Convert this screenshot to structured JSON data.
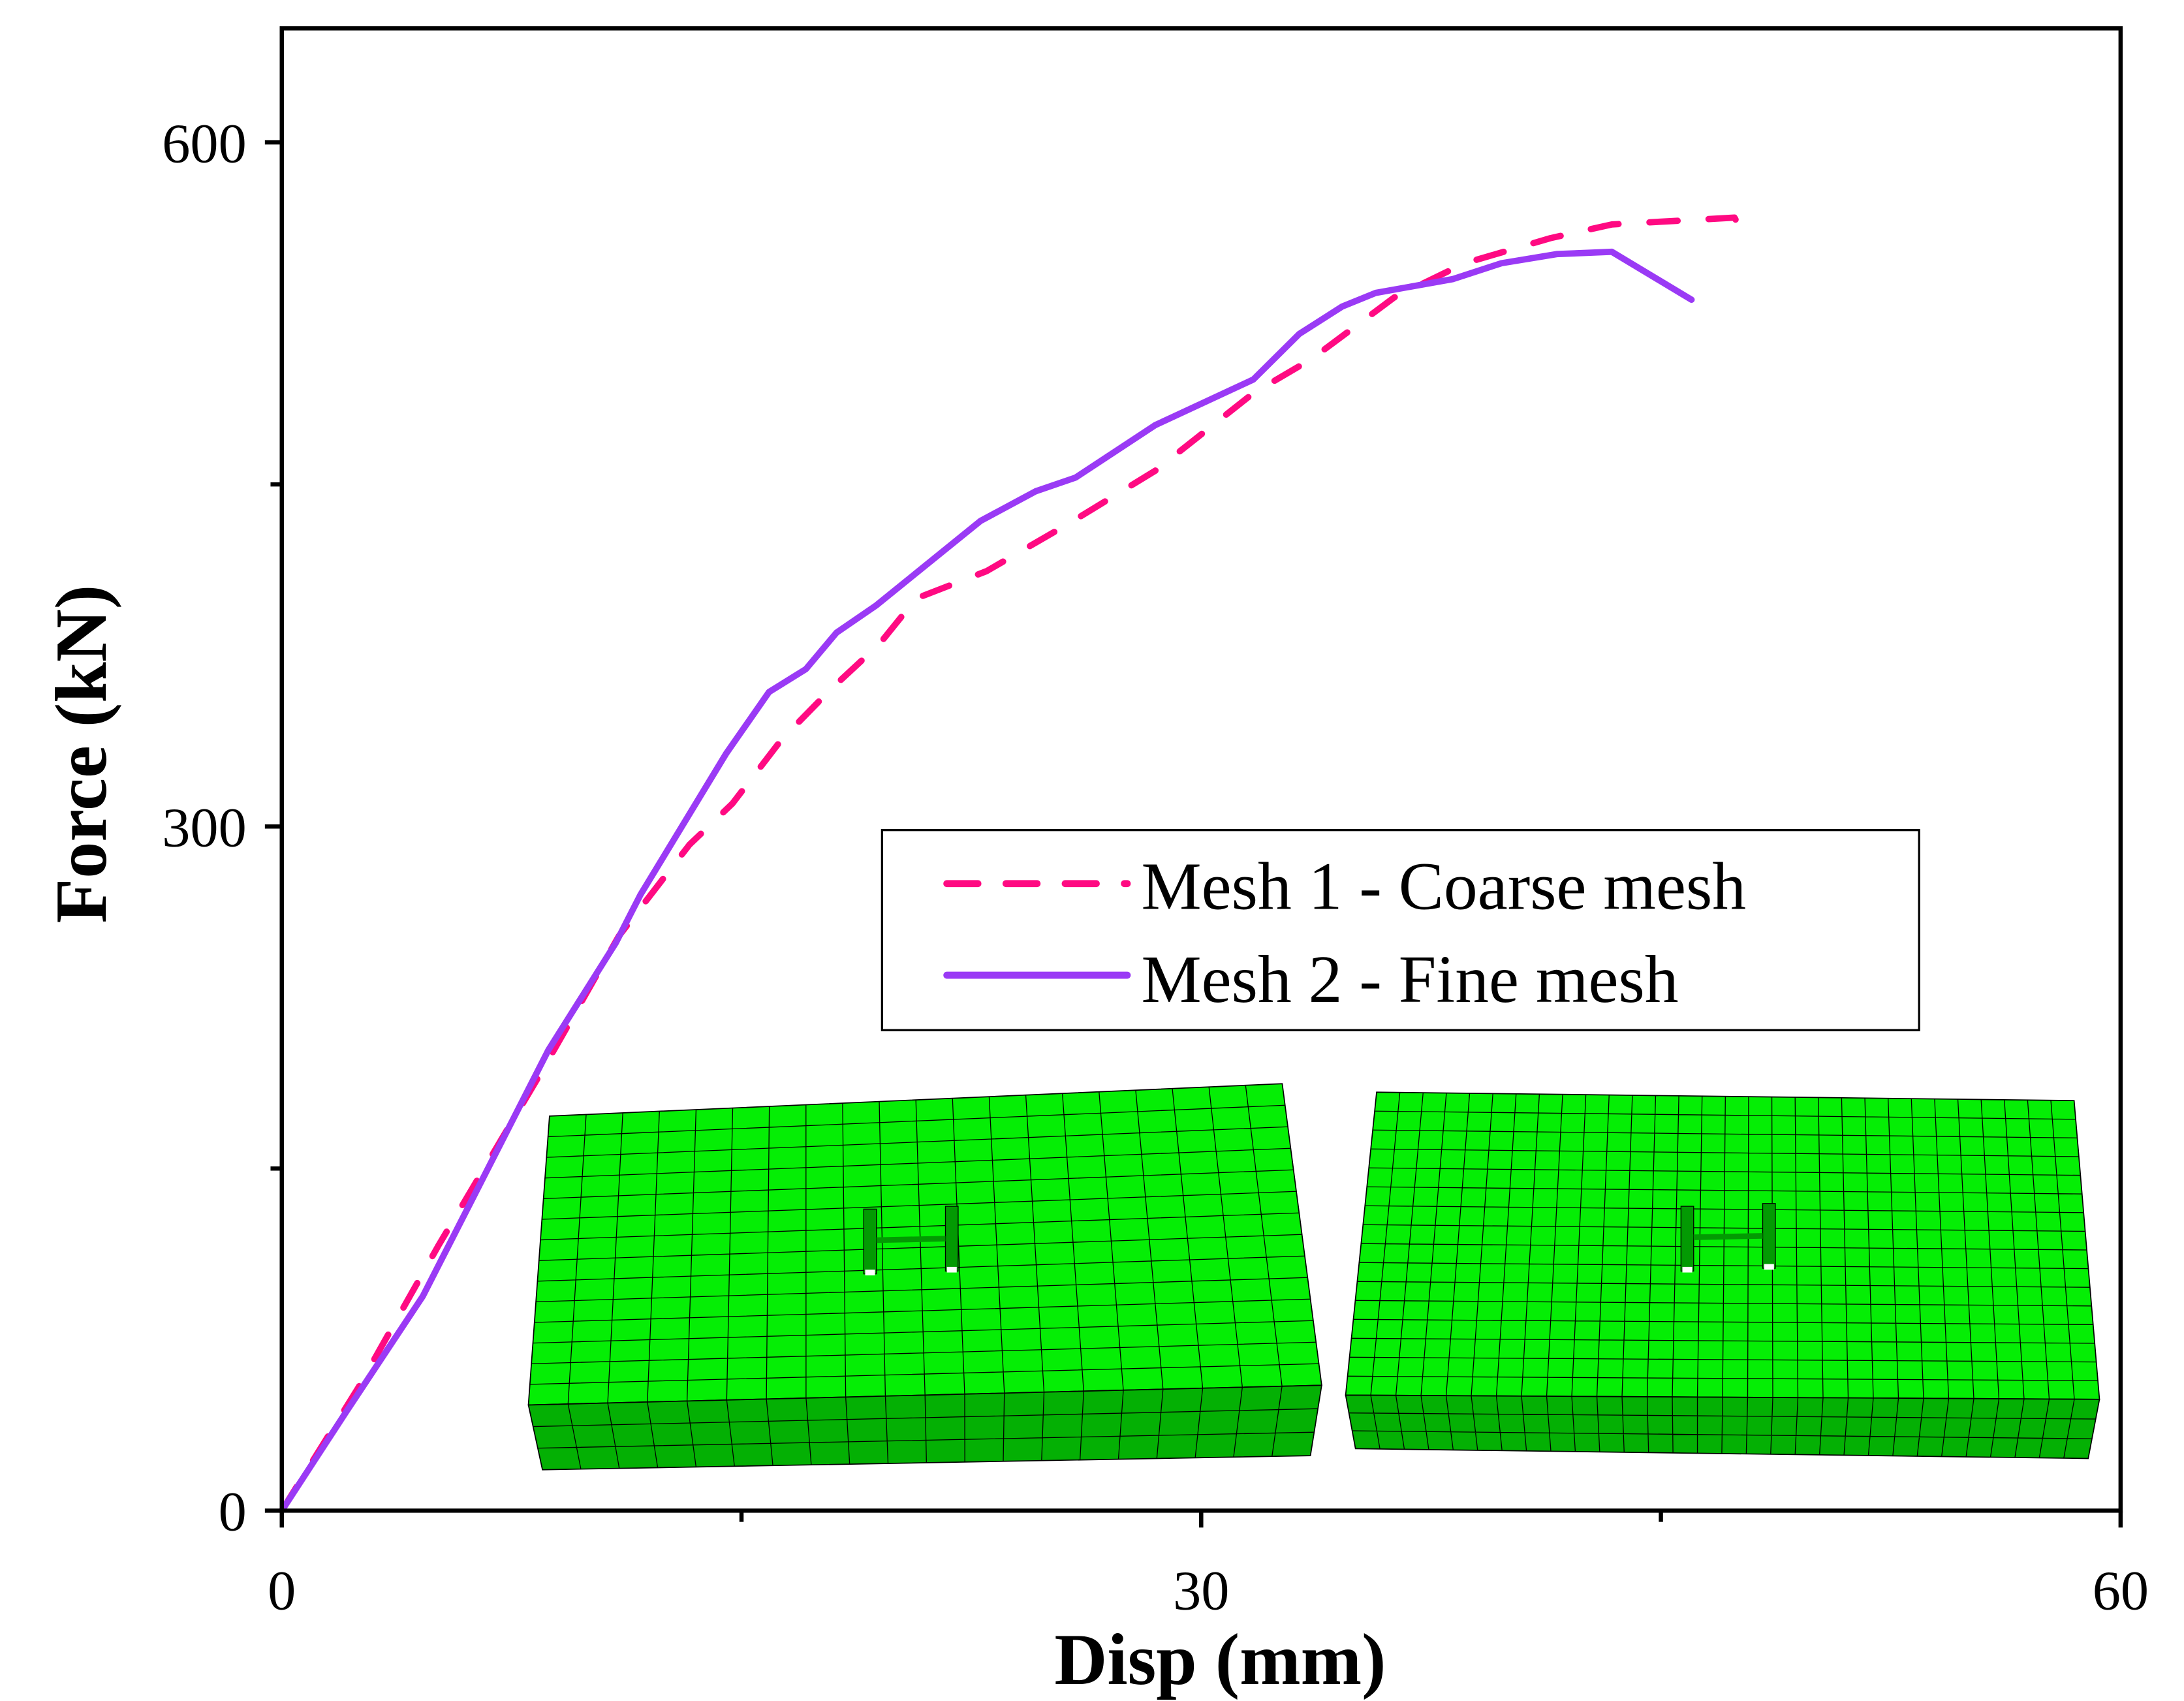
{
  "chart_data": {
    "type": "line",
    "xlabel": "Disp (mm)",
    "ylabel": "Force (kN)",
    "xlim": [
      0,
      60
    ],
    "ylim": [
      0,
      650
    ],
    "xticks": [
      0,
      30,
      60
    ],
    "yticks": [
      0,
      300,
      600
    ],
    "xminor": [
      15,
      45
    ],
    "yminor": [
      150,
      450
    ],
    "grid": false,
    "legend_position": "center-right",
    "series": [
      {
        "name": "Mesh 1 - Coarse mesh",
        "color": "#ff0a82",
        "style": "dashed",
        "x": [
          0,
          2.5,
          5.1,
          8.5,
          11.0,
          13.3,
          14.7,
          16.3,
          17.9,
          19.5,
          20.7,
          23.0,
          25.7,
          28.5,
          31.7,
          33.6,
          36.3,
          38.6,
          41.4,
          43.4,
          47.4,
          47.9
        ],
        "y": [
          0,
          54,
          116,
          193,
          252,
          292,
          310,
          338,
          360,
          380,
          400,
          412,
          433,
          456,
          490,
          505,
          532,
          547,
          558,
          564,
          567,
          555
        ]
      },
      {
        "name": "Mesh 2 - Fine mesh",
        "color": "#9a3af5",
        "style": "solid",
        "x": [
          0,
          2.07,
          4.6,
          8.7,
          10.9,
          11.7,
          14.5,
          15.9,
          17.1,
          18.1,
          19.4,
          22.8,
          24.6,
          25.9,
          28.5,
          31.7,
          33.2,
          34.6,
          35.7,
          38.2,
          39.8,
          41.6,
          43.4,
          46.0
        ],
        "y": [
          0,
          42.7,
          94,
          202,
          249,
          270,
          332,
          359,
          369,
          385,
          397,
          434,
          447,
          453,
          476,
          496,
          516,
          528,
          534,
          540,
          547,
          551,
          552,
          531
        ]
      }
    ],
    "insets": {
      "mesh_color": "#05ee05",
      "side_color": "#04b004"
    }
  }
}
